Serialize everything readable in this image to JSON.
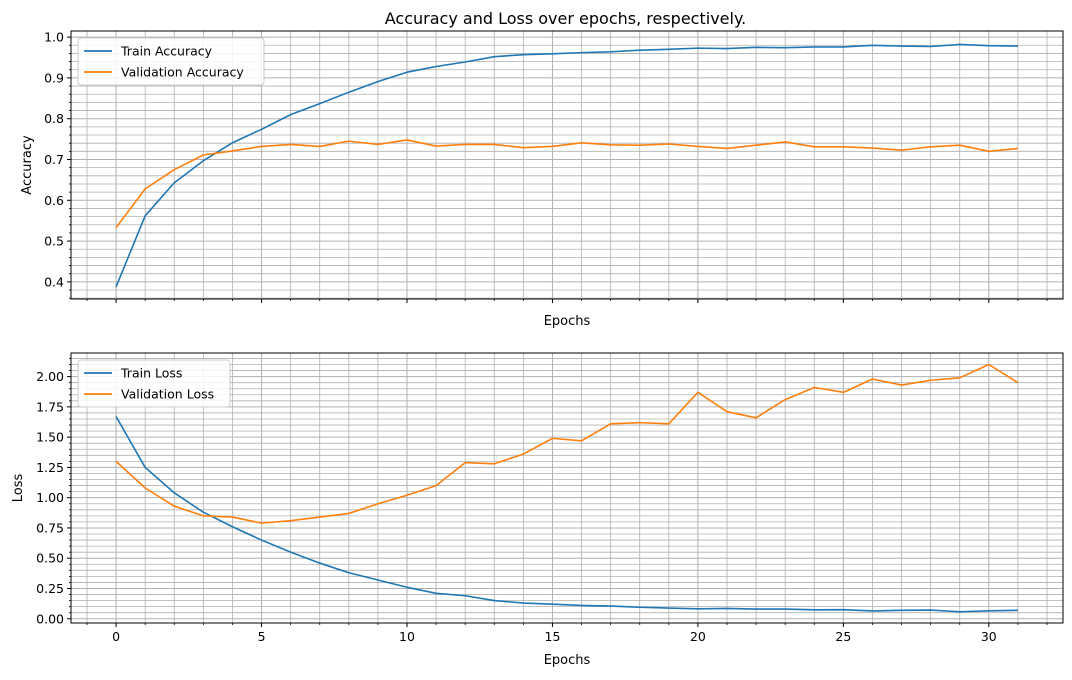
{
  "title": "Accuracy and Loss over epochs, respectively.",
  "chart_data": [
    {
      "type": "line",
      "title": "Accuracy and Loss over epochs, respectively.",
      "xlabel": "Epochs",
      "ylabel": "Accuracy",
      "xlim": [
        -1.55,
        32.55
      ],
      "ylim": [
        0.358,
        1.015
      ],
      "xticks": [
        0,
        5,
        10,
        15,
        20,
        25,
        30
      ],
      "xticks_labeled": false,
      "yticks": [
        0.4,
        0.5,
        0.6,
        0.7,
        0.8,
        0.9,
        1.0
      ],
      "ytick_labels": [
        "0.4",
        "0.5",
        "0.6",
        "0.7",
        "0.8",
        "0.9",
        "1.0"
      ],
      "grid": "major and minor",
      "legend": "top-left",
      "x": [
        0,
        1,
        2,
        3,
        4,
        5,
        6,
        7,
        8,
        9,
        10,
        11,
        12,
        13,
        14,
        15,
        16,
        17,
        18,
        19,
        20,
        21,
        22,
        23,
        24,
        25,
        26,
        27,
        28,
        29,
        30,
        31
      ],
      "series": [
        {
          "name": "Train Accuracy",
          "color": "#1f77b4",
          "values": [
            0.388,
            0.562,
            0.643,
            0.697,
            0.741,
            0.774,
            0.81,
            0.837,
            0.865,
            0.891,
            0.914,
            0.928,
            0.939,
            0.952,
            0.957,
            0.959,
            0.962,
            0.964,
            0.968,
            0.97,
            0.973,
            0.972,
            0.975,
            0.974,
            0.976,
            0.976,
            0.98,
            0.978,
            0.977,
            0.982,
            0.979,
            0.978
          ]
        },
        {
          "name": "Validation Accuracy",
          "color": "#ff7f0e",
          "values": [
            0.533,
            0.628,
            0.675,
            0.711,
            0.721,
            0.732,
            0.737,
            0.732,
            0.745,
            0.737,
            0.748,
            0.733,
            0.737,
            0.737,
            0.729,
            0.732,
            0.741,
            0.736,
            0.735,
            0.738,
            0.732,
            0.727,
            0.735,
            0.743,
            0.731,
            0.731,
            0.728,
            0.723,
            0.731,
            0.735,
            0.72,
            0.727
          ]
        }
      ]
    },
    {
      "type": "line",
      "xlabel": "Epochs",
      "ylabel": "Loss",
      "xlim": [
        -1.55,
        32.55
      ],
      "ylim": [
        -0.035,
        2.195
      ],
      "xticks": [
        0,
        5,
        10,
        15,
        20,
        25,
        30
      ],
      "xtick_labels": [
        "0",
        "5",
        "10",
        "15",
        "20",
        "25",
        "30"
      ],
      "yticks": [
        0.0,
        0.25,
        0.5,
        0.75,
        1.0,
        1.25,
        1.5,
        1.75,
        2.0
      ],
      "ytick_labels": [
        "0.00",
        "0.25",
        "0.50",
        "0.75",
        "1.00",
        "1.25",
        "1.50",
        "1.75",
        "2.00"
      ],
      "grid": "major and minor",
      "legend": "top-left",
      "x": [
        0,
        1,
        2,
        3,
        4,
        5,
        6,
        7,
        8,
        9,
        10,
        11,
        12,
        13,
        14,
        15,
        16,
        17,
        18,
        19,
        20,
        21,
        22,
        23,
        24,
        25,
        26,
        27,
        28,
        29,
        30,
        31
      ],
      "series": [
        {
          "name": "Train Loss",
          "color": "#1f77b4",
          "values": [
            1.67,
            1.25,
            1.04,
            0.88,
            0.76,
            0.65,
            0.55,
            0.46,
            0.38,
            0.32,
            0.26,
            0.21,
            0.19,
            0.15,
            0.13,
            0.12,
            0.11,
            0.105,
            0.095,
            0.088,
            0.082,
            0.085,
            0.08,
            0.08,
            0.074,
            0.075,
            0.065,
            0.07,
            0.072,
            0.058,
            0.066,
            0.07
          ]
        },
        {
          "name": "Validation Loss",
          "color": "#ff7f0e",
          "values": [
            1.3,
            1.08,
            0.93,
            0.85,
            0.84,
            0.79,
            0.81,
            0.84,
            0.87,
            0.95,
            1.02,
            1.1,
            1.29,
            1.28,
            1.36,
            1.49,
            1.47,
            1.61,
            1.62,
            1.61,
            1.87,
            1.71,
            1.66,
            1.81,
            1.91,
            1.87,
            1.98,
            1.93,
            1.97,
            1.99,
            2.1,
            1.95
          ]
        }
      ]
    }
  ]
}
